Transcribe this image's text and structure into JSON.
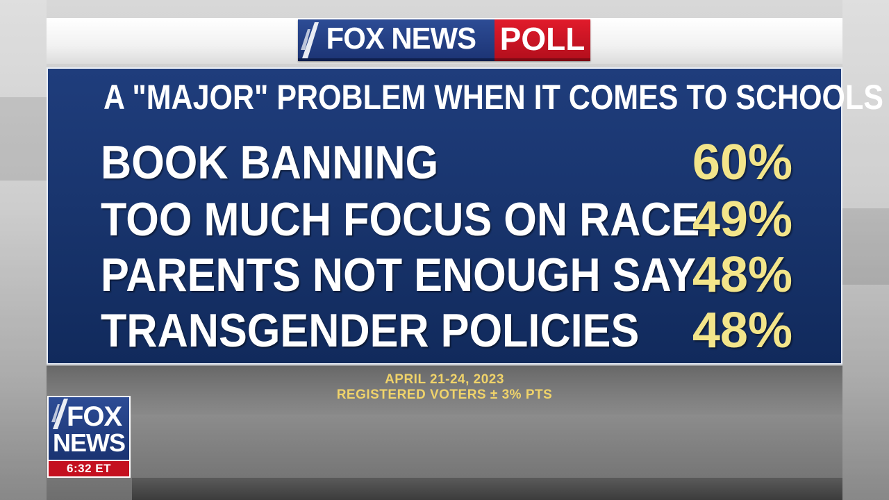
{
  "header": {
    "logo_fox_news": "FOX NEWS",
    "logo_poll": "POLL"
  },
  "panel": {
    "title": "A \"MAJOR\" PROBLEM WHEN IT COMES TO SCHOOLS",
    "rows": [
      {
        "label": "BOOK BANNING",
        "value": "60%"
      },
      {
        "label": "TOO MUCH FOCUS ON RACE",
        "value": "49%"
      },
      {
        "label": "PARENTS NOT ENOUGH SAY",
        "value": "48%"
      },
      {
        "label": "TRANSGENDER POLICIES",
        "value": "48%"
      }
    ]
  },
  "footer": {
    "dates": "APRIL 21-24, 2023",
    "sample": "REGISTERED VOTERS ± 3% PTS"
  },
  "corner_logo": {
    "fox": "FOX",
    "news": "NEWS",
    "time": "6:32 ET"
  },
  "colors": {
    "panel_blue": "#1a3672",
    "value_yellow": "#f3e58a",
    "footer_gold": "#f0d36a",
    "poll_red": "#d0192a"
  }
}
